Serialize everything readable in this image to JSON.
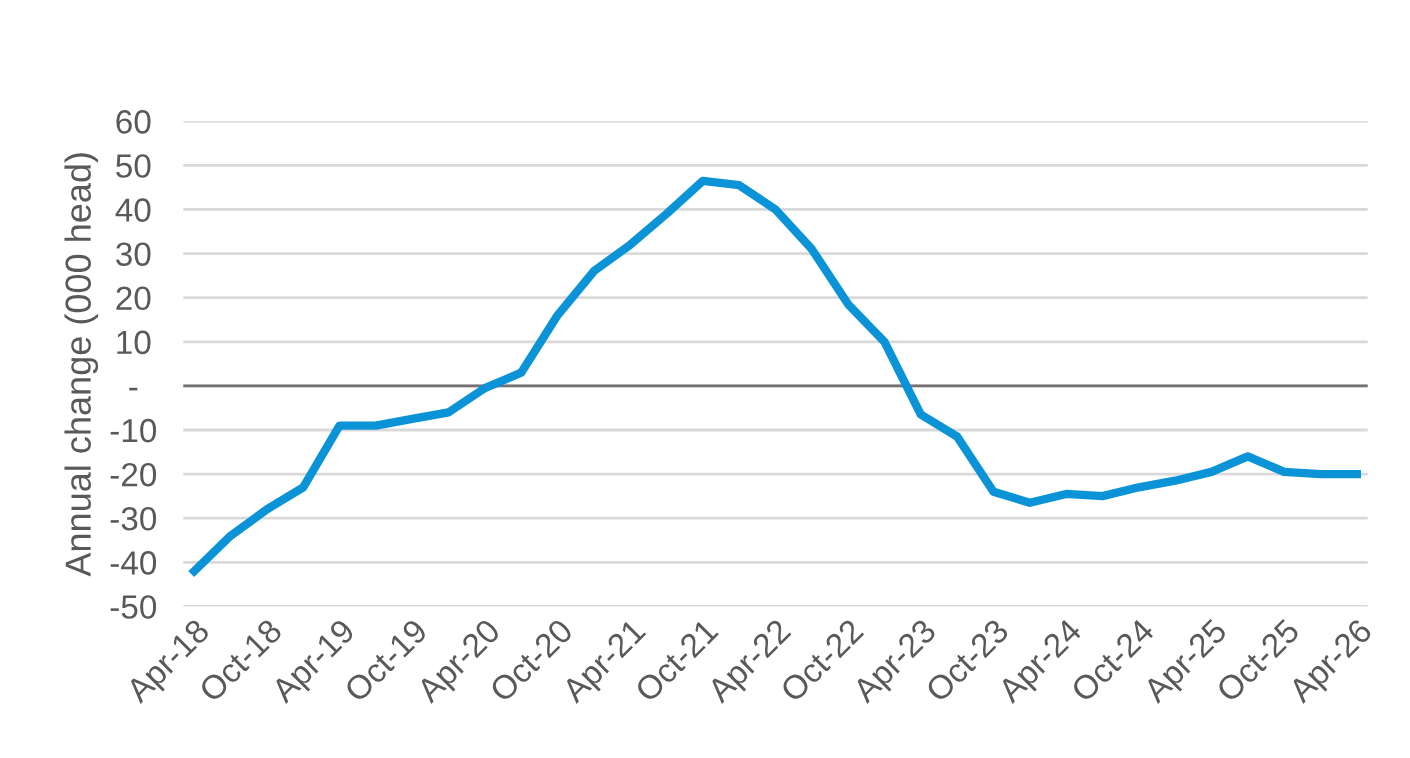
{
  "chart_data": {
    "type": "line",
    "ylabel": "Annual change (000 head)",
    "categories": [
      "Apr-18",
      null,
      "Oct-18",
      null,
      "Apr-19",
      null,
      "Oct-19",
      null,
      "Apr-20",
      null,
      "Oct-20",
      null,
      "Apr-21",
      null,
      "Oct-21",
      null,
      "Apr-22",
      null,
      "Oct-22",
      null,
      "Apr-23",
      null,
      "Oct-23",
      null,
      "Apr-24",
      null,
      "Oct-24",
      null,
      "Apr-25",
      null,
      "Oct-25",
      null,
      "Apr-26"
    ],
    "series": [
      {
        "color": "#0a93d6",
        "values": [
          -42,
          -34,
          -28,
          -23,
          -9,
          -9,
          -7.5,
          -6,
          -0.5,
          3,
          16,
          26,
          32,
          39,
          46.5,
          45.5,
          40,
          31,
          18.5,
          10,
          -6.5,
          -11.5,
          -24,
          -26.5,
          -24.5,
          -25,
          -23,
          -21.5,
          -19.5,
          -16,
          -19.5,
          -20,
          -20
        ]
      }
    ],
    "ylim": [
      -50,
      60
    ],
    "yticks": [
      -50,
      -40,
      -30,
      -20,
      -10,
      {
        "value": 0,
        "label": "-"
      },
      10,
      20,
      30,
      40,
      50,
      60
    ],
    "ref_lines": [
      {
        "axis": "y",
        "value": 0,
        "color": "#767171"
      }
    ],
    "grid": "y",
    "legend": false,
    "marker": "none",
    "line_style": "solid"
  }
}
